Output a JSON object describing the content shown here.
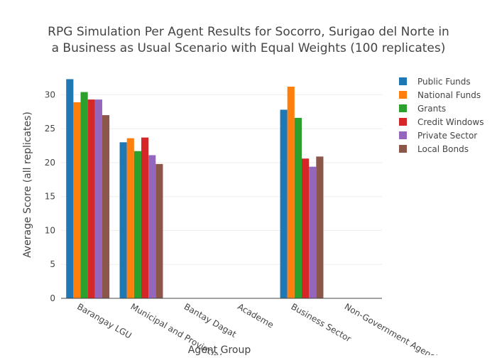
{
  "chart_data": {
    "type": "bar",
    "title_lines": [
      "RPG Simulation Per Agent Results for Socorro, Surigao del Norte in",
      "a Business as Usual Scenario with Equal Weights (100 replicates)"
    ],
    "xlabel": "Agent Group",
    "ylabel": "Average Score (all replicates)",
    "ylim": [
      0,
      33.5
    ],
    "yticks": [
      0,
      5,
      10,
      15,
      20,
      25,
      30
    ],
    "grid": true,
    "legend_position": "top-right",
    "categories": [
      "Barangay LGU",
      "Municipal and Provincial LGU",
      "Bantay Dagat",
      "Academe",
      "Business Sector",
      "Non-Government Agencies"
    ],
    "series": [
      {
        "name": "Public Funds",
        "color": "#1f77b4",
        "values": [
          32.3,
          23.0,
          0,
          0,
          27.8,
          0
        ]
      },
      {
        "name": "National Funds",
        "color": "#ff7f0e",
        "values": [
          28.9,
          23.6,
          0,
          0,
          31.2,
          0
        ]
      },
      {
        "name": "Grants",
        "color": "#2ca02c",
        "values": [
          30.4,
          21.7,
          0,
          0,
          26.6,
          0
        ]
      },
      {
        "name": "Credit Windows",
        "color": "#d62728",
        "values": [
          29.3,
          23.7,
          0,
          0,
          20.6,
          0
        ]
      },
      {
        "name": "Private Sector",
        "color": "#9467bd",
        "values": [
          29.3,
          21.1,
          0,
          0,
          19.4,
          0
        ]
      },
      {
        "name": "Local Bonds",
        "color": "#8c564b",
        "values": [
          27.0,
          19.8,
          0,
          0,
          20.9,
          0
        ]
      }
    ]
  }
}
